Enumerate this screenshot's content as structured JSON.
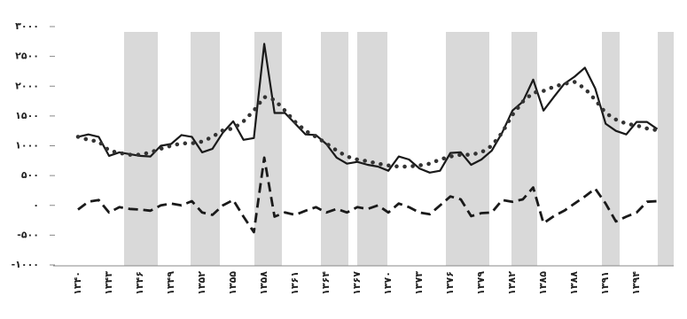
{
  "chart_data": {
    "type": "line",
    "categories": [
      "۱۳۴۰",
      null,
      null,
      "۱۳۴۳",
      null,
      null,
      "۱۳۴۶",
      null,
      null,
      "۱۳۴۹",
      null,
      null,
      "۱۳۵۲",
      null,
      null,
      "۱۳۵۵",
      null,
      null,
      "۱۳۵۸",
      null,
      null,
      "۱۳۶۱",
      null,
      null,
      "۱۳۶۴",
      null,
      null,
      "۱۳۶۷",
      null,
      null,
      "۱۳۷۰",
      null,
      null,
      "۱۳۷۳",
      null,
      null,
      "۱۳۷۶",
      null,
      null,
      "۱۳۷۹",
      null,
      null,
      "۱۳۸۲",
      null,
      null,
      "۱۳۸۵",
      null,
      null,
      "۱۳۸۸",
      null,
      null,
      "۱۳۹۱",
      null,
      null,
      "۱۳۹۴",
      null,
      null
    ],
    "series": [
      {
        "color": "#1a1a1a",
        "style": "solid",
        "values": [
          1150,
          1190,
          1150,
          830,
          890,
          860,
          830,
          820,
          1000,
          1030,
          1180,
          1150,
          890,
          950,
          1220,
          1410,
          1100,
          1130,
          2710,
          1550,
          1550,
          1370,
          1190,
          1180,
          1030,
          800,
          700,
          730,
          680,
          650,
          580,
          820,
          770,
          620,
          550,
          580,
          880,
          890,
          680,
          770,
          920,
          1220,
          1590,
          1740,
          2110,
          1590,
          1820,
          2040,
          2160,
          2310,
          1960,
          1370,
          1250,
          1190,
          1400,
          1400,
          1280
        ]
      },
      {
        "color": "#333333",
        "style": "dotted",
        "values": [
          1150,
          1100,
          1070,
          920,
          880,
          850,
          850,
          890,
          950,
          1000,
          1040,
          1040,
          1070,
          1150,
          1260,
          1290,
          1410,
          1590,
          1820,
          1770,
          1590,
          1400,
          1250,
          1150,
          1040,
          920,
          820,
          770,
          740,
          700,
          670,
          650,
          650,
          670,
          700,
          770,
          820,
          850,
          850,
          890,
          1000,
          1220,
          1520,
          1740,
          1890,
          1920,
          1990,
          2040,
          2070,
          1960,
          1770,
          1550,
          1440,
          1370,
          1340,
          1290,
          1260
        ]
      },
      {
        "color": "#1a1a1a",
        "style": "dashed",
        "values": [
          -70,
          60,
          90,
          -120,
          -30,
          -60,
          -70,
          -90,
          0,
          30,
          0,
          70,
          -120,
          -160,
          0,
          90,
          -190,
          -450,
          800,
          -190,
          -120,
          -160,
          -90,
          -30,
          -120,
          -60,
          -120,
          -30,
          -60,
          0,
          -120,
          30,
          -30,
          -120,
          -150,
          0,
          150,
          100,
          -180,
          -130,
          -120,
          90,
          60,
          100,
          300,
          -300,
          -180,
          -90,
          30,
          150,
          280,
          30,
          -270,
          -190,
          -120,
          60,
          70
        ]
      }
    ],
    "ylim": [
      -1000,
      3000
    ],
    "yticks": [
      {
        "value": -1000,
        "label": "-۱۰۰۰"
      },
      {
        "value": -500,
        "label": "-۵۰۰"
      },
      {
        "value": 0,
        "label": "۰"
      },
      {
        "value": 500,
        "label": "۵۰۰"
      },
      {
        "value": 1000,
        "label": "۱۰۰۰"
      },
      {
        "value": 1500,
        "label": "۱۵۰۰"
      },
      {
        "value": 2000,
        "label": "۲۰۰۰"
      },
      {
        "value": 2500,
        "label": "۲۵۰۰"
      },
      {
        "value": 3000,
        "label": "۳۰۰۰"
      }
    ]
  }
}
